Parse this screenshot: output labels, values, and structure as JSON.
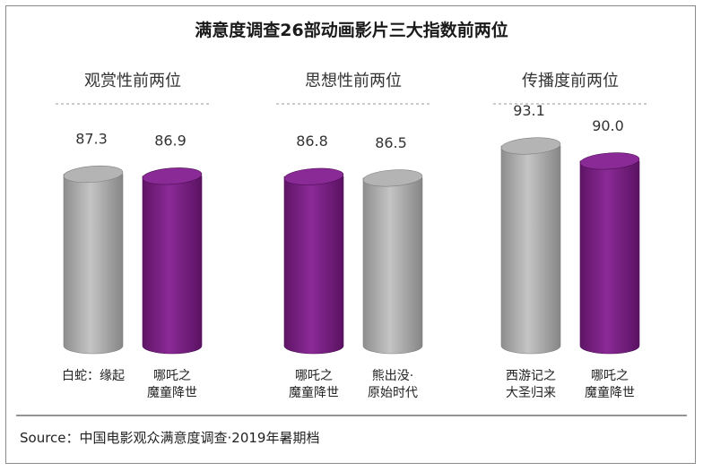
{
  "chart_data": {
    "type": "bar",
    "title": "满意度调查26部动画影片三大指数前两位",
    "ylim": [
      0,
      100
    ],
    "groups": [
      {
        "name": "观赏性前两位",
        "bars": [
          {
            "label": [
              "白蛇：缘起"
            ],
            "value": 87.3,
            "color": "gray"
          },
          {
            "label": [
              "哪吒之",
              "魔童降世"
            ],
            "value": 86.9,
            "color": "purple"
          }
        ]
      },
      {
        "name": "思想性前两位",
        "bars": [
          {
            "label": [
              "哪吒之",
              "魔童降世"
            ],
            "value": 86.8,
            "color": "purple"
          },
          {
            "label": [
              "熊出没·",
              "原始时代"
            ],
            "value": 86.5,
            "color": "gray"
          }
        ]
      },
      {
        "name": "传播度前两位",
        "bars": [
          {
            "label": [
              "西游记之",
              "大圣归来"
            ],
            "value": 93.1,
            "color": "gray"
          },
          {
            "label": [
              "哪吒之",
              "魔童降世"
            ],
            "value": 90.0,
            "color": "purple"
          }
        ]
      }
    ],
    "source": "Source：中国电影观众满意度调查·2019年暑期档"
  },
  "colors": {
    "gray": "#a3a3a3",
    "purple": "#7a1f86"
  }
}
